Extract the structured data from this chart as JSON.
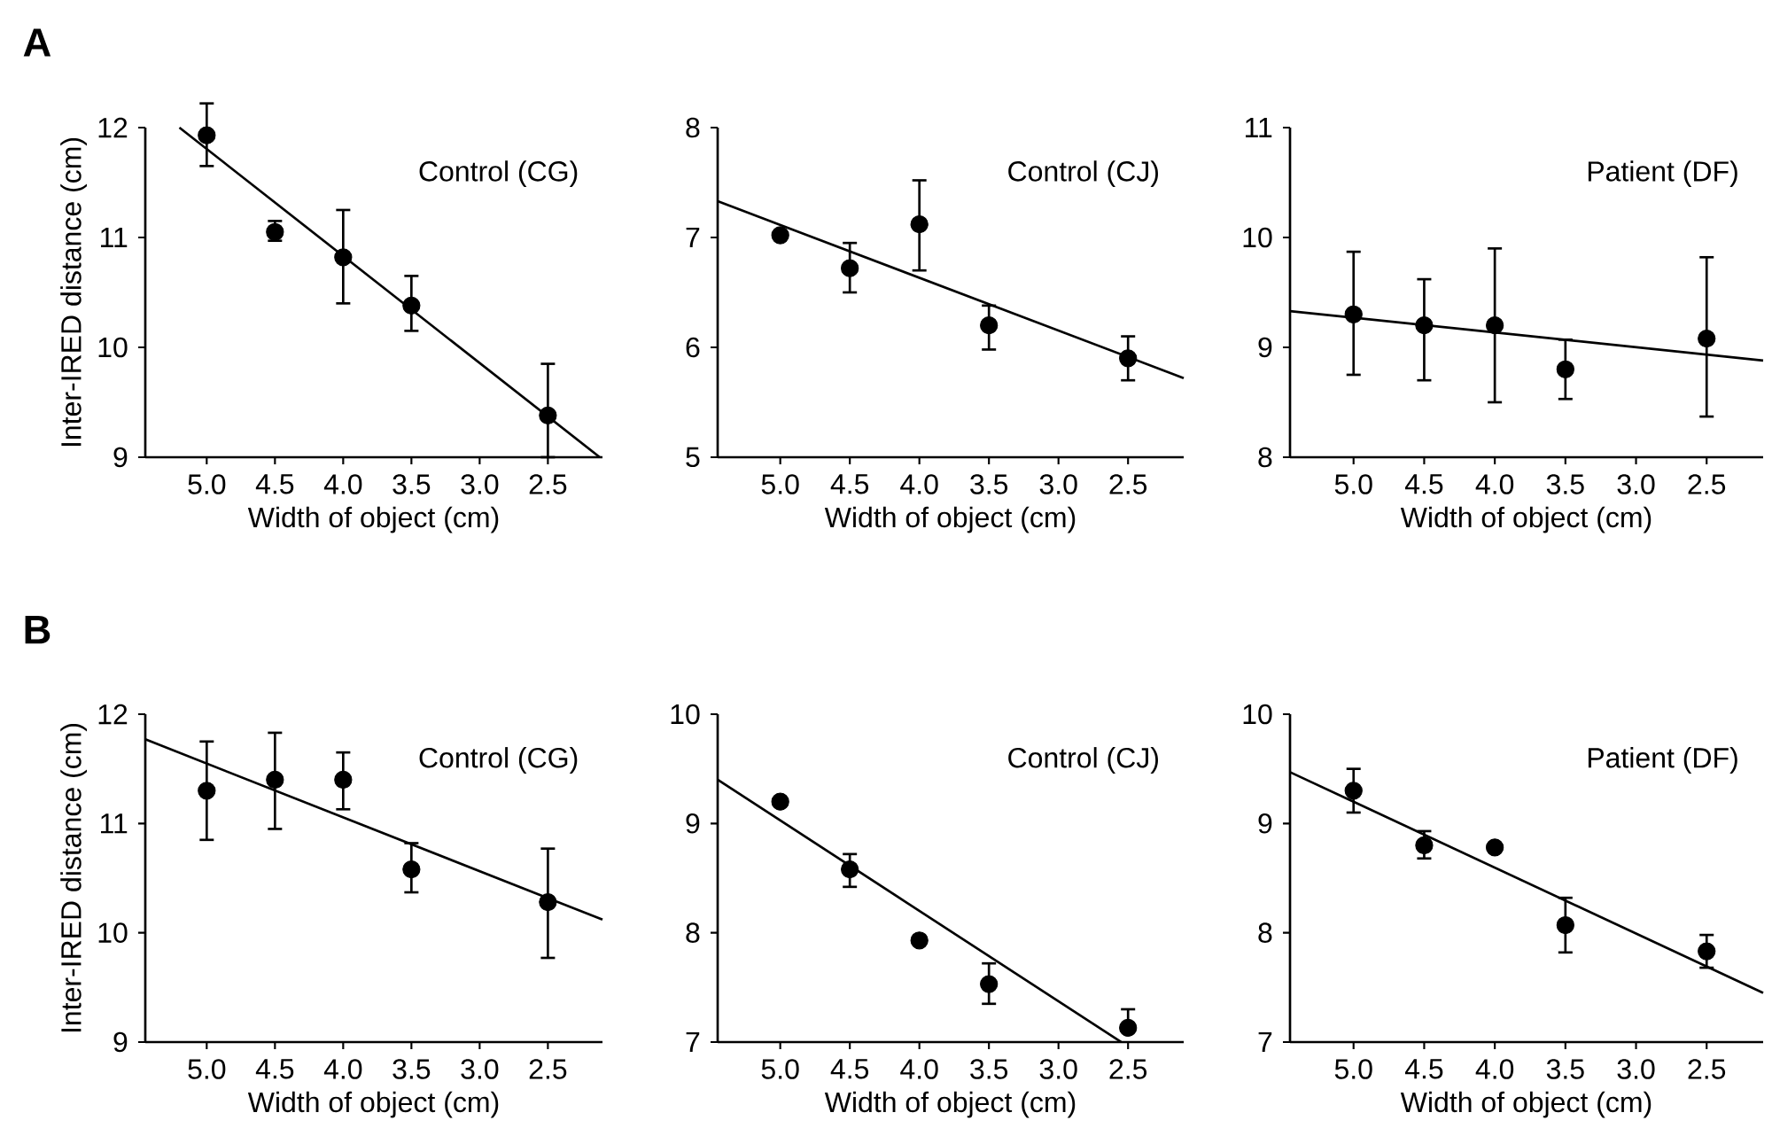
{
  "chart_data": [
    {
      "type": "scatter",
      "title": "Control (CG)",
      "xlabel": "Width of object (cm)",
      "ylabel": "Inter-IRED distance (cm)",
      "annotations": [
        "A"
      ],
      "marker": "circle",
      "xlim": [
        5.45,
        2.1
      ],
      "xticks": [
        {
          "value": 5.0,
          "label": "5.0"
        },
        {
          "value": 4.5,
          "label": "4.5"
        },
        {
          "value": 4.0,
          "label": "4.0"
        },
        {
          "value": 3.5,
          "label": "3.5"
        },
        {
          "value": 3.0,
          "label": "3.0"
        },
        {
          "value": 2.5,
          "label": "2.5"
        }
      ],
      "ylim": [
        9,
        12
      ],
      "yticks": [
        9,
        10,
        11,
        12
      ],
      "series": [
        {
          "color": "#000000",
          "x": [
            5.0,
            4.5,
            4.0,
            3.5,
            2.5
          ],
          "values": [
            11.93,
            11.05,
            10.82,
            10.38,
            9.38
          ],
          "errors": [
            [
              11.65,
              12.22
            ],
            [
              10.97,
              11.15
            ],
            [
              10.4,
              11.25
            ],
            [
              10.15,
              10.65
            ],
            [
              9.0,
              9.85
            ]
          ]
        },
        {
          "type": "line",
          "marker": "none",
          "color": "#000000",
          "x": [
            5.2,
            2.12
          ],
          "values": [
            12.0,
            9.0
          ]
        }
      ]
    },
    {
      "type": "scatter",
      "title": "Control (CJ)",
      "xlabel": "Width of object (cm)",
      "marker": "circle",
      "xlim": [
        5.45,
        2.1
      ],
      "xticks": [
        {
          "value": 5.0,
          "label": "5.0"
        },
        {
          "value": 4.5,
          "label": "4.5"
        },
        {
          "value": 4.0,
          "label": "4.0"
        },
        {
          "value": 3.5,
          "label": "3.5"
        },
        {
          "value": 3.0,
          "label": "3.0"
        },
        {
          "value": 2.5,
          "label": "2.5"
        }
      ],
      "ylim": [
        5,
        8
      ],
      "yticks": [
        5,
        6,
        7,
        8
      ],
      "series": [
        {
          "color": "#000000",
          "x": [
            5.0,
            4.5,
            4.0,
            3.5,
            2.5
          ],
          "values": [
            7.02,
            6.72,
            7.12,
            6.2,
            5.9
          ],
          "errors": [
            null,
            [
              6.5,
              6.95
            ],
            [
              6.7,
              7.52
            ],
            [
              5.98,
              6.38
            ],
            [
              5.7,
              6.1
            ]
          ]
        },
        {
          "type": "line",
          "marker": "none",
          "color": "#000000",
          "x": [
            5.45,
            2.1
          ],
          "values": [
            7.33,
            5.72
          ]
        }
      ]
    },
    {
      "type": "scatter",
      "title": "Patient (DF)",
      "xlabel": "Width of object (cm)",
      "marker": "circle",
      "xlim": [
        5.45,
        2.1
      ],
      "xticks": [
        {
          "value": 5.0,
          "label": "5.0"
        },
        {
          "value": 4.5,
          "label": "4.5"
        },
        {
          "value": 4.0,
          "label": "4.0"
        },
        {
          "value": 3.5,
          "label": "3.5"
        },
        {
          "value": 3.0,
          "label": "3.0"
        },
        {
          "value": 2.5,
          "label": "2.5"
        }
      ],
      "ylim": [
        8,
        11
      ],
      "yticks": [
        8,
        9,
        10,
        11
      ],
      "series": [
        {
          "color": "#000000",
          "x": [
            5.0,
            4.5,
            4.0,
            3.5,
            2.5
          ],
          "values": [
            9.3,
            9.2,
            9.2,
            8.8,
            9.08
          ],
          "errors": [
            [
              8.75,
              9.87
            ],
            [
              8.7,
              9.62
            ],
            [
              8.5,
              9.9
            ],
            [
              8.53,
              9.07
            ],
            [
              8.37,
              9.82
            ]
          ]
        },
        {
          "type": "line",
          "marker": "none",
          "color": "#000000",
          "x": [
            5.45,
            2.1
          ],
          "values": [
            9.33,
            8.88
          ]
        }
      ]
    },
    {
      "type": "scatter",
      "title": "Control (CG)",
      "xlabel": "Width of object (cm)",
      "ylabel": "Inter-IRED distance (cm)",
      "annotations": [
        "B"
      ],
      "marker": "circle",
      "xlim": [
        5.45,
        2.1
      ],
      "xticks": [
        {
          "value": 5.0,
          "label": "5.0"
        },
        {
          "value": 4.5,
          "label": "4.5"
        },
        {
          "value": 4.0,
          "label": "4.0"
        },
        {
          "value": 3.5,
          "label": "3.5"
        },
        {
          "value": 3.0,
          "label": "3.0"
        },
        {
          "value": 2.5,
          "label": "2.5"
        }
      ],
      "ylim": [
        9,
        12
      ],
      "yticks": [
        9,
        10,
        11,
        12
      ],
      "series": [
        {
          "color": "#000000",
          "x": [
            5.0,
            4.5,
            4.0,
            3.5,
            2.5
          ],
          "values": [
            11.3,
            11.4,
            11.4,
            10.58,
            10.28
          ],
          "errors": [
            [
              10.85,
              11.75
            ],
            [
              10.95,
              11.83
            ],
            [
              11.13,
              11.65
            ],
            [
              10.37,
              10.82
            ],
            [
              9.77,
              10.77
            ]
          ]
        },
        {
          "type": "line",
          "marker": "none",
          "color": "#000000",
          "x": [
            5.45,
            2.1
          ],
          "values": [
            11.77,
            10.12
          ]
        }
      ]
    },
    {
      "type": "scatter",
      "title": "Control (CJ)",
      "xlabel": "Width of object (cm)",
      "marker": "circle",
      "xlim": [
        5.45,
        2.1
      ],
      "xticks": [
        {
          "value": 5.0,
          "label": "5.0"
        },
        {
          "value": 4.5,
          "label": "4.5"
        },
        {
          "value": 4.0,
          "label": "4.0"
        },
        {
          "value": 3.5,
          "label": "3.5"
        },
        {
          "value": 3.0,
          "label": "3.0"
        },
        {
          "value": 2.5,
          "label": "2.5"
        }
      ],
      "ylim": [
        7,
        10
      ],
      "yticks": [
        7,
        8,
        9,
        10
      ],
      "series": [
        {
          "color": "#000000",
          "x": [
            5.0,
            4.5,
            4.0,
            3.5,
            2.5
          ],
          "values": [
            9.2,
            8.58,
            7.93,
            7.53,
            7.13
          ],
          "errors": [
            null,
            [
              8.42,
              8.72
            ],
            null,
            [
              7.35,
              7.72
            ],
            [
              7.13,
              7.3
            ]
          ]
        },
        {
          "type": "line",
          "marker": "none",
          "color": "#000000",
          "x": [
            5.45,
            2.55
          ],
          "values": [
            9.4,
            7.0
          ]
        }
      ]
    },
    {
      "type": "scatter",
      "title": "Patient (DF)",
      "xlabel": "Width of object (cm)",
      "marker": "circle",
      "xlim": [
        5.45,
        2.1
      ],
      "xticks": [
        {
          "value": 5.0,
          "label": "5.0"
        },
        {
          "value": 4.5,
          "label": "4.5"
        },
        {
          "value": 4.0,
          "label": "4.0"
        },
        {
          "value": 3.5,
          "label": "3.5"
        },
        {
          "value": 3.0,
          "label": "3.0"
        },
        {
          "value": 2.5,
          "label": "2.5"
        }
      ],
      "ylim": [
        7,
        10
      ],
      "yticks": [
        7,
        8,
        9,
        10
      ],
      "series": [
        {
          "color": "#000000",
          "x": [
            5.0,
            4.5,
            4.0,
            3.5,
            2.5
          ],
          "values": [
            9.3,
            8.8,
            8.78,
            8.07,
            7.83
          ],
          "errors": [
            [
              9.1,
              9.5
            ],
            [
              8.68,
              8.93
            ],
            null,
            [
              7.82,
              8.32
            ],
            [
              7.68,
              7.98
            ]
          ]
        },
        {
          "type": "line",
          "marker": "none",
          "color": "#000000",
          "x": [
            5.45,
            2.1
          ],
          "values": [
            9.47,
            7.45
          ]
        }
      ]
    }
  ]
}
